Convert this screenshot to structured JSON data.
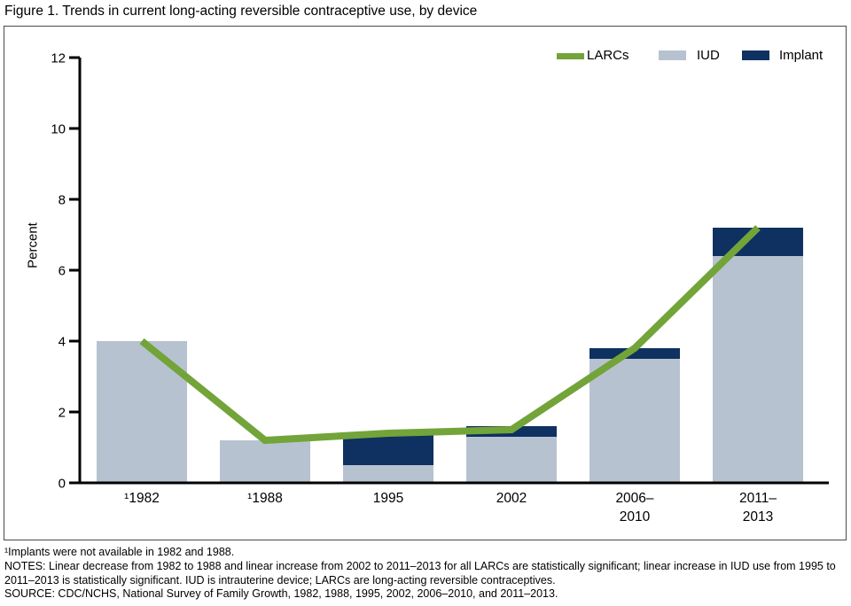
{
  "figure_title": "Figure 1. Trends in current long-acting reversible contraceptive use, by device",
  "legend": [
    {
      "label": "LARCs",
      "type": "line",
      "color": "#72a439"
    },
    {
      "label": "IUD",
      "type": "bar",
      "color": "#b7c2d0"
    },
    {
      "label": "Implant",
      "type": "bar",
      "color": "#0e3161"
    }
  ],
  "chart_data": {
    "type": "bar",
    "subtype": "stacked-bars-with-line-overlay",
    "categories": [
      [
        "¹1982"
      ],
      [
        "¹1988"
      ],
      [
        "1995"
      ],
      [
        "2002"
      ],
      [
        "2006–",
        "2010"
      ],
      [
        "2011–",
        "2013"
      ]
    ],
    "series": [
      {
        "name": "IUD",
        "type": "bar",
        "color": "#b7c2d0",
        "values": [
          4.0,
          1.2,
          0.5,
          1.3,
          3.5,
          6.4
        ]
      },
      {
        "name": "Implant",
        "type": "bar",
        "color": "#0e3161",
        "values": [
          0,
          0,
          0.9,
          0.3,
          0.3,
          0.8
        ]
      },
      {
        "name": "LARCs",
        "type": "line",
        "color": "#72a439",
        "values": [
          4.0,
          1.2,
          1.4,
          1.5,
          3.8,
          7.2
        ]
      }
    ],
    "title": "",
    "xlabel": "",
    "ylabel": "Percent",
    "ylim": [
      0,
      12
    ],
    "yticks": [
      0,
      2,
      4,
      6,
      8,
      10,
      12
    ],
    "grid": false,
    "legend_position": "top-right"
  },
  "footnotes": {
    "footnote1": "¹Implants were not available in 1982 and 1988.",
    "notes": "NOTES: Linear decrease from 1982 to 1988 and linear increase from 2002 to 2011–2013 for all LARCs are statistically significant; linear increase in IUD use from 1995 to 2011–2013 is statistically significant. IUD is intrauterine device; LARCs are long-acting reversible contraceptives.",
    "source": "SOURCE: CDC/NCHS, National Survey of Family Growth, 1982, 1988, 1995, 2002, 2006–2010, and 2011–2013."
  }
}
